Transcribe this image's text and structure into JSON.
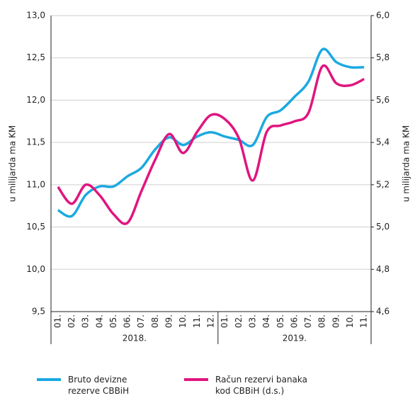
{
  "chart_data": {
    "type": "line",
    "ylabel": "u milijarda ma KM",
    "y2label": "u milijarda ma KM",
    "categories": [
      "01.",
      "02.",
      "03.",
      "04.",
      "05.",
      "06.",
      "07.",
      "08.",
      "09.",
      "10.",
      "11.",
      "12.",
      "01.",
      "02.",
      "03.",
      "04.",
      "05.",
      "06.",
      "07.",
      "08.",
      "09.",
      "10.",
      "11."
    ],
    "group_labels": [
      "2018.",
      "2019."
    ],
    "series": [
      {
        "name": "Bruto devizne rezerve CBBiH",
        "color": "#1ba9e1",
        "axis": "y",
        "values": [
          10.7,
          10.63,
          10.88,
          10.98,
          10.98,
          11.1,
          11.2,
          11.42,
          11.56,
          11.47,
          11.57,
          11.62,
          11.57,
          11.53,
          11.47,
          11.8,
          11.88,
          12.04,
          12.22,
          12.6,
          12.45,
          12.39,
          12.39
        ]
      },
      {
        "name": "Račun rezervi banaka kod CBBiH (d.s.)",
        "color": "#e0157f",
        "axis": "y2",
        "values": [
          5.19,
          5.11,
          5.2,
          5.15,
          5.06,
          5.02,
          5.17,
          5.32,
          5.44,
          5.35,
          5.45,
          5.53,
          5.51,
          5.42,
          5.22,
          5.45,
          5.48,
          5.5,
          5.54,
          5.76,
          5.68,
          5.67,
          5.7
        ]
      }
    ],
    "ylim": [
      9.5,
      13
    ],
    "yticks": [
      {
        "value": 9.5,
        "label": "9,5"
      },
      {
        "value": 10,
        "label": "10,0"
      },
      {
        "value": 10.5,
        "label": "10,5"
      },
      {
        "value": 11,
        "label": "11,0"
      },
      {
        "value": 11.5,
        "label": "11,5"
      },
      {
        "value": 12,
        "label": "12,0"
      },
      {
        "value": 12.5,
        "label": "12,5"
      },
      {
        "value": 13,
        "label": "13,0"
      }
    ],
    "y2lim": [
      4.6,
      6
    ],
    "y2ticks": [
      {
        "value": 4.6,
        "label": "4,6"
      },
      {
        "value": 4.8,
        "label": "4,8"
      },
      {
        "value": 5,
        "label": "5,0"
      },
      {
        "value": 5.2,
        "label": "5,2"
      },
      {
        "value": 5.4,
        "label": "5,4"
      },
      {
        "value": 5.6,
        "label": "5,6"
      },
      {
        "value": 5.8,
        "label": "5,8"
      },
      {
        "value": 6,
        "label": "6,0"
      }
    ],
    "grid": true
  }
}
